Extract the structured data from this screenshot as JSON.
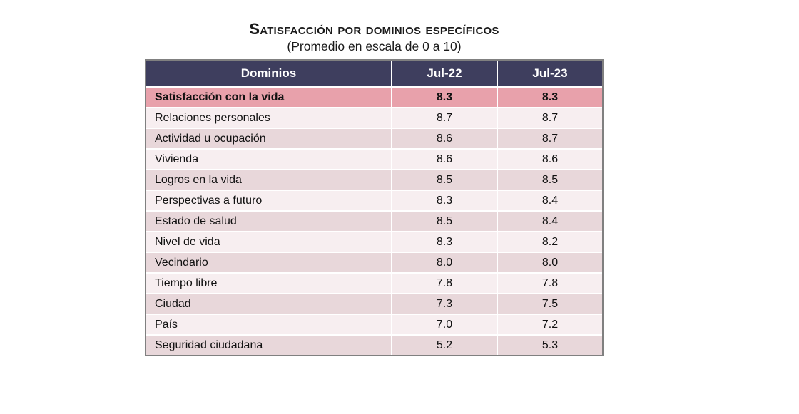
{
  "title": "Satisfacción por dominios específicos",
  "subtitle": "(Promedio en escala de 0 a 10)",
  "colors": {
    "header_bg": "#3E3E5E",
    "header_text": "#FFFFFF",
    "highlight_bg": "#E8A1AB",
    "row_light_bg": "#F7EEF0",
    "row_dark_bg": "#E8D7DA",
    "separator": "#FFFFFF",
    "outer_border": "#808080",
    "text": "#111111"
  },
  "chart_data": {
    "type": "table",
    "title": "Satisfacción por dominios específicos",
    "subtitle": "(Promedio en escala de 0 a 10)",
    "scale": [
      0,
      10
    ],
    "columns": [
      "Dominios",
      "Jul-22",
      "Jul-23"
    ],
    "rows": [
      {
        "label": "Satisfacción con la vida",
        "jul22": "8.3",
        "jul23": "8.3",
        "highlight": true
      },
      {
        "label": "Relaciones personales",
        "jul22": "8.7",
        "jul23": "8.7",
        "highlight": false
      },
      {
        "label": "Actividad u ocupación",
        "jul22": "8.6",
        "jul23": "8.7",
        "highlight": false
      },
      {
        "label": "Vivienda",
        "jul22": "8.6",
        "jul23": "8.6",
        "highlight": false
      },
      {
        "label": "Logros en la vida",
        "jul22": "8.5",
        "jul23": "8.5",
        "highlight": false
      },
      {
        "label": "Perspectivas a futuro",
        "jul22": "8.3",
        "jul23": "8.4",
        "highlight": false
      },
      {
        "label": "Estado de salud",
        "jul22": "8.5",
        "jul23": "8.4",
        "highlight": false
      },
      {
        "label": "Nivel de vida",
        "jul22": "8.3",
        "jul23": "8.2",
        "highlight": false
      },
      {
        "label": "Vecindario",
        "jul22": "8.0",
        "jul23": "8.0",
        "highlight": false
      },
      {
        "label": "Tiempo libre",
        "jul22": "7.8",
        "jul23": "7.8",
        "highlight": false
      },
      {
        "label": "Ciudad",
        "jul22": "7.3",
        "jul23": "7.5",
        "highlight": false
      },
      {
        "label": "País",
        "jul22": "7.0",
        "jul23": "7.2",
        "highlight": false
      },
      {
        "label": "Seguridad ciudadana",
        "jul22": "5.2",
        "jul23": "5.3",
        "highlight": false
      }
    ]
  }
}
